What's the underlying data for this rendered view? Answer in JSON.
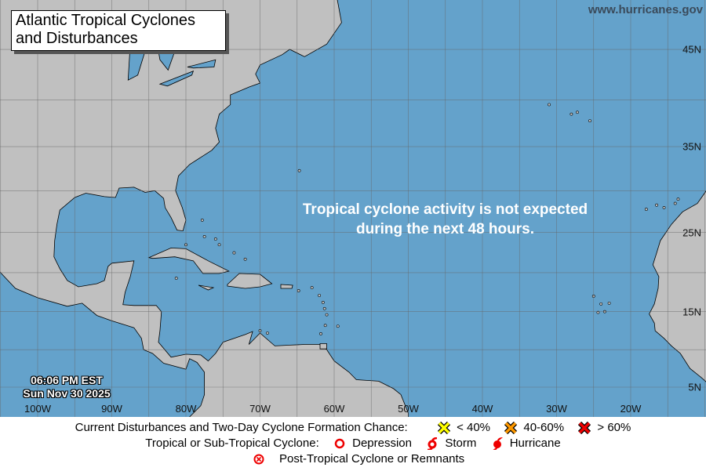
{
  "title": {
    "line1": "Atlantic Tropical Cyclones",
    "line2": "and Disturbances"
  },
  "site": "www.hurricanes.gov",
  "message": {
    "line1": "Tropical cyclone activity is not expected",
    "line2": "during the next 48 hours."
  },
  "timestamp": {
    "time": "06:06 PM EST",
    "date": "Sun Nov 30 2025"
  },
  "longitude_labels": [
    "100W",
    "90W",
    "80W",
    "70W",
    "60W",
    "50W",
    "40W",
    "30W",
    "20W"
  ],
  "latitude_labels": [
    "45N",
    "35N",
    "25N",
    "15N",
    "5N"
  ],
  "colors": {
    "ocean": "#64a2cb",
    "land": "#c0c0c0",
    "low": "#ffff00",
    "medium": "#ff9900",
    "high": "#ee0000",
    "cyclone": "#ee0000"
  },
  "legend": {
    "disturbances_label": "Current Disturbances and Two-Day Cyclone Formation Chance:",
    "low": "< 40%",
    "medium": "40-60%",
    "high": "> 60%",
    "cyclone_label": "Tropical or Sub-Tropical Cyclone:",
    "depression": "Depression",
    "storm": "Storm",
    "hurricane": "Hurricane",
    "post_tropical": "Post-Tropical Cyclone or Remnants"
  }
}
